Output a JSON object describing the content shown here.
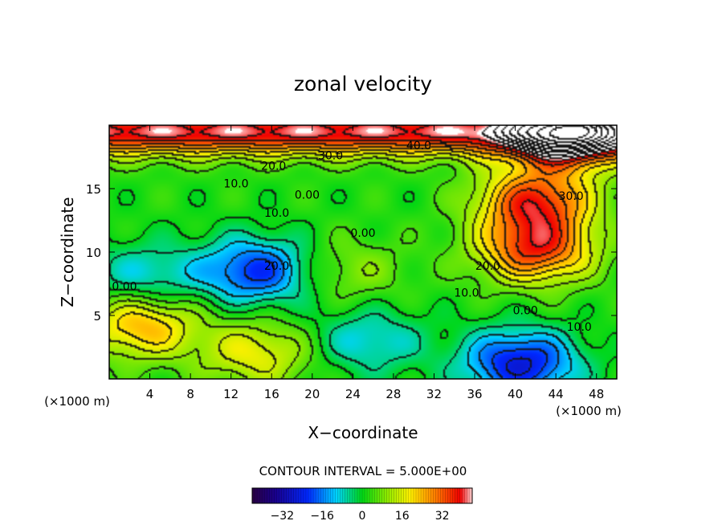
{
  "chart_data": {
    "type": "heatmap",
    "title": "zonal velocity",
    "xlabel": "X−coordinate",
    "ylabel": "Z−coordinate",
    "x_unit_left": "(×1000 m)",
    "x_unit_right": "(×1000 m)",
    "xlim": [
      0,
      50
    ],
    "ylim": [
      0,
      20
    ],
    "x_ticks": [
      4,
      8,
      12,
      16,
      20,
      24,
      28,
      32,
      36,
      40,
      44,
      48
    ],
    "x_tick_labels": [
      "4",
      "8",
      "12",
      "16",
      "20",
      "24",
      "28",
      "32",
      "36",
      "40",
      "44",
      "48"
    ],
    "y_ticks": [
      5,
      10,
      15
    ],
    "y_tick_labels": [
      "5",
      "10",
      "15"
    ],
    "contour_labels": [
      {
        "text": "40.0",
        "x": 30.5,
        "z": 18.1
      },
      {
        "text": "30.0",
        "x": 21.8,
        "z": 17.3
      },
      {
        "text": "20.0",
        "x": 16.2,
        "z": 16.5
      },
      {
        "text": "10.0",
        "x": 12.5,
        "z": 15.1
      },
      {
        "text": "0.00",
        "x": 19.5,
        "z": 14.2
      },
      {
        "text": "10.0",
        "x": 16.5,
        "z": 12.8
      },
      {
        "text": "0.00",
        "x": 25.0,
        "z": 11.2
      },
      {
        "text": "20.0",
        "x": 16.5,
        "z": 8.6
      },
      {
        "text": "0.00",
        "x": 1.5,
        "z": 7.0
      },
      {
        "text": "30.0",
        "x": 45.5,
        "z": 14.1
      },
      {
        "text": "20.0",
        "x": 37.3,
        "z": 8.6
      },
      {
        "text": "10.0",
        "x": 35.2,
        "z": 6.5
      },
      {
        "text": "0.00",
        "x": 41.0,
        "z": 5.1
      },
      {
        "text": "10.0",
        "x": 46.3,
        "z": 3.8
      }
    ],
    "field_extremes": [
      {
        "value": 45,
        "x": 45,
        "z": 19.2
      },
      {
        "value": 35,
        "x": 42.0,
        "z": 14.0
      },
      {
        "value": 35,
        "x": 42.0,
        "z": 10.2
      },
      {
        "value": -22,
        "x": 14.5,
        "z": 8.5
      },
      {
        "value": -10,
        "x": 3.5,
        "z": 8.0
      },
      {
        "value": 25,
        "x": 3.2,
        "z": 4.2
      },
      {
        "value": 18,
        "x": 14.5,
        "z": 2.0
      },
      {
        "value": -10,
        "x": 25.5,
        "z": 3.0
      },
      {
        "value": -26,
        "x": 40.5,
        "z": 1.2
      },
      {
        "value": 10,
        "x": 23.5,
        "z": 8.5
      }
    ],
    "colorbar": {
      "range": [
        -44,
        44
      ],
      "ticks": [
        -32,
        -16,
        0,
        16,
        32
      ],
      "tick_labels": [
        "−32",
        "−16",
        "0",
        "16",
        "32"
      ]
    },
    "contour_interval_text": "CONTOUR INTERVAL = 5.000E+00"
  }
}
